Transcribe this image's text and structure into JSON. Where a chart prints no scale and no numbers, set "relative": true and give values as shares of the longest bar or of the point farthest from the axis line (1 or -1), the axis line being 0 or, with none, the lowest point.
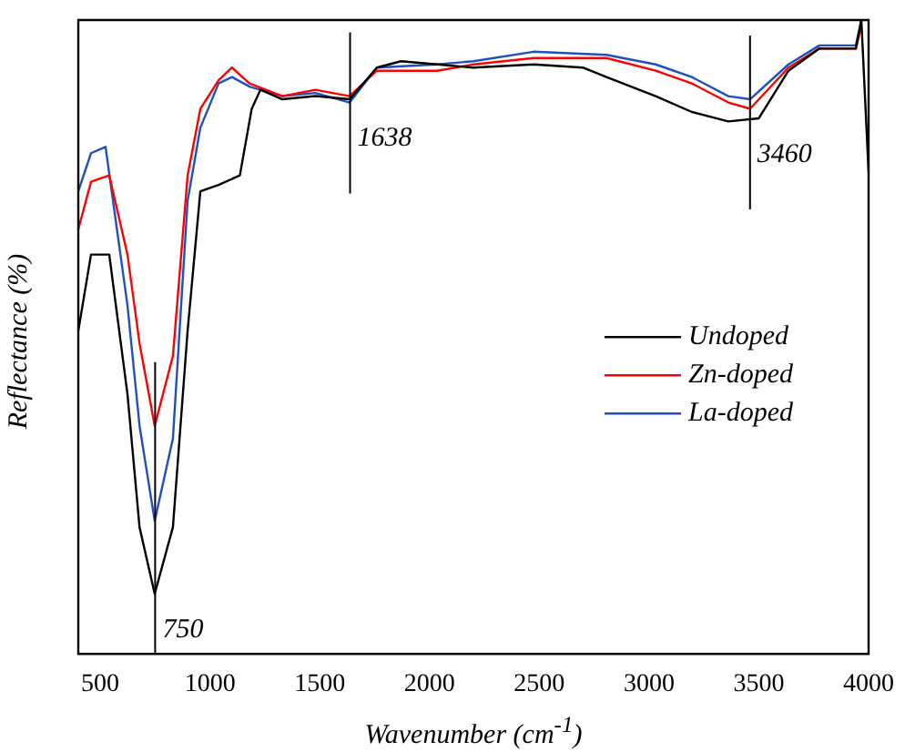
{
  "chart_data": {
    "type": "line",
    "relative": true,
    "xlabel": "Wavenumber (cm$^{-1}$)",
    "ylabel": "Reflectance (%)",
    "xlim": [
      400,
      4000
    ],
    "xticks": [
      500,
      1000,
      1500,
      2000,
      2500,
      3000,
      3500,
      4000
    ],
    "legend": "right",
    "grid": false,
    "marker": "none",
    "ref_lines": [
      {
        "axis": "x",
        "value": 750,
        "label": "750"
      },
      {
        "axis": "x",
        "value": 1638,
        "label": "1638"
      },
      {
        "axis": "x",
        "value": 3460,
        "label": "3460"
      }
    ],
    "series": [
      {
        "name": "Undoped",
        "color": "#000000",
        "x": [
          400,
          458,
          541,
          624,
          679,
          748,
          831,
          898,
          956,
          1039,
          1136,
          1190,
          1230,
          1330,
          1480,
          1636,
          1760,
          1870,
          2035,
          2200,
          2474,
          2698,
          2806,
          3030,
          3195,
          3361,
          3500,
          3635,
          3776,
          3942,
          3967,
          4000
        ],
        "values": [
          0.51,
          0.63,
          0.63,
          0.41,
          0.2,
          0.095,
          0.2,
          0.51,
          0.73,
          0.74,
          0.755,
          0.86,
          0.89,
          0.875,
          0.88,
          0.875,
          0.925,
          0.935,
          0.93,
          0.925,
          0.93,
          0.925,
          0.91,
          0.88,
          0.855,
          0.84,
          0.845,
          0.92,
          0.955,
          0.955,
          1.0,
          0.76
        ]
      },
      {
        "name": "Zn-doped",
        "color": "#ff0000",
        "x": [
          400,
          458,
          541,
          624,
          679,
          748,
          831,
          898,
          956,
          1039,
          1100,
          1180,
          1330,
          1480,
          1636,
          1760,
          2035,
          2200,
          2474,
          2806,
          3030,
          3195,
          3361,
          3460,
          3635,
          3776,
          3942,
          3967
        ],
        "values": [
          0.67,
          0.745,
          0.755,
          0.63,
          0.49,
          0.36,
          0.47,
          0.755,
          0.86,
          0.905,
          0.925,
          0.9,
          0.88,
          0.89,
          0.88,
          0.92,
          0.92,
          0.93,
          0.94,
          0.94,
          0.92,
          0.9,
          0.87,
          0.86,
          0.925,
          0.955,
          0.955,
          0.99
        ]
      },
      {
        "name": "La-doped",
        "color": "#2050c0",
        "x": [
          400,
          458,
          524,
          624,
          679,
          748,
          831,
          898,
          956,
          1039,
          1100,
          1180,
          1330,
          1480,
          1636,
          1760,
          2035,
          2200,
          2474,
          2806,
          3030,
          3195,
          3361,
          3460,
          3635,
          3776,
          3942,
          3967
        ],
        "values": [
          0.73,
          0.79,
          0.8,
          0.55,
          0.36,
          0.21,
          0.34,
          0.715,
          0.83,
          0.9,
          0.91,
          0.895,
          0.88,
          0.885,
          0.87,
          0.925,
          0.93,
          0.935,
          0.95,
          0.945,
          0.93,
          0.91,
          0.88,
          0.875,
          0.93,
          0.96,
          0.96,
          1.0
        ]
      }
    ]
  }
}
